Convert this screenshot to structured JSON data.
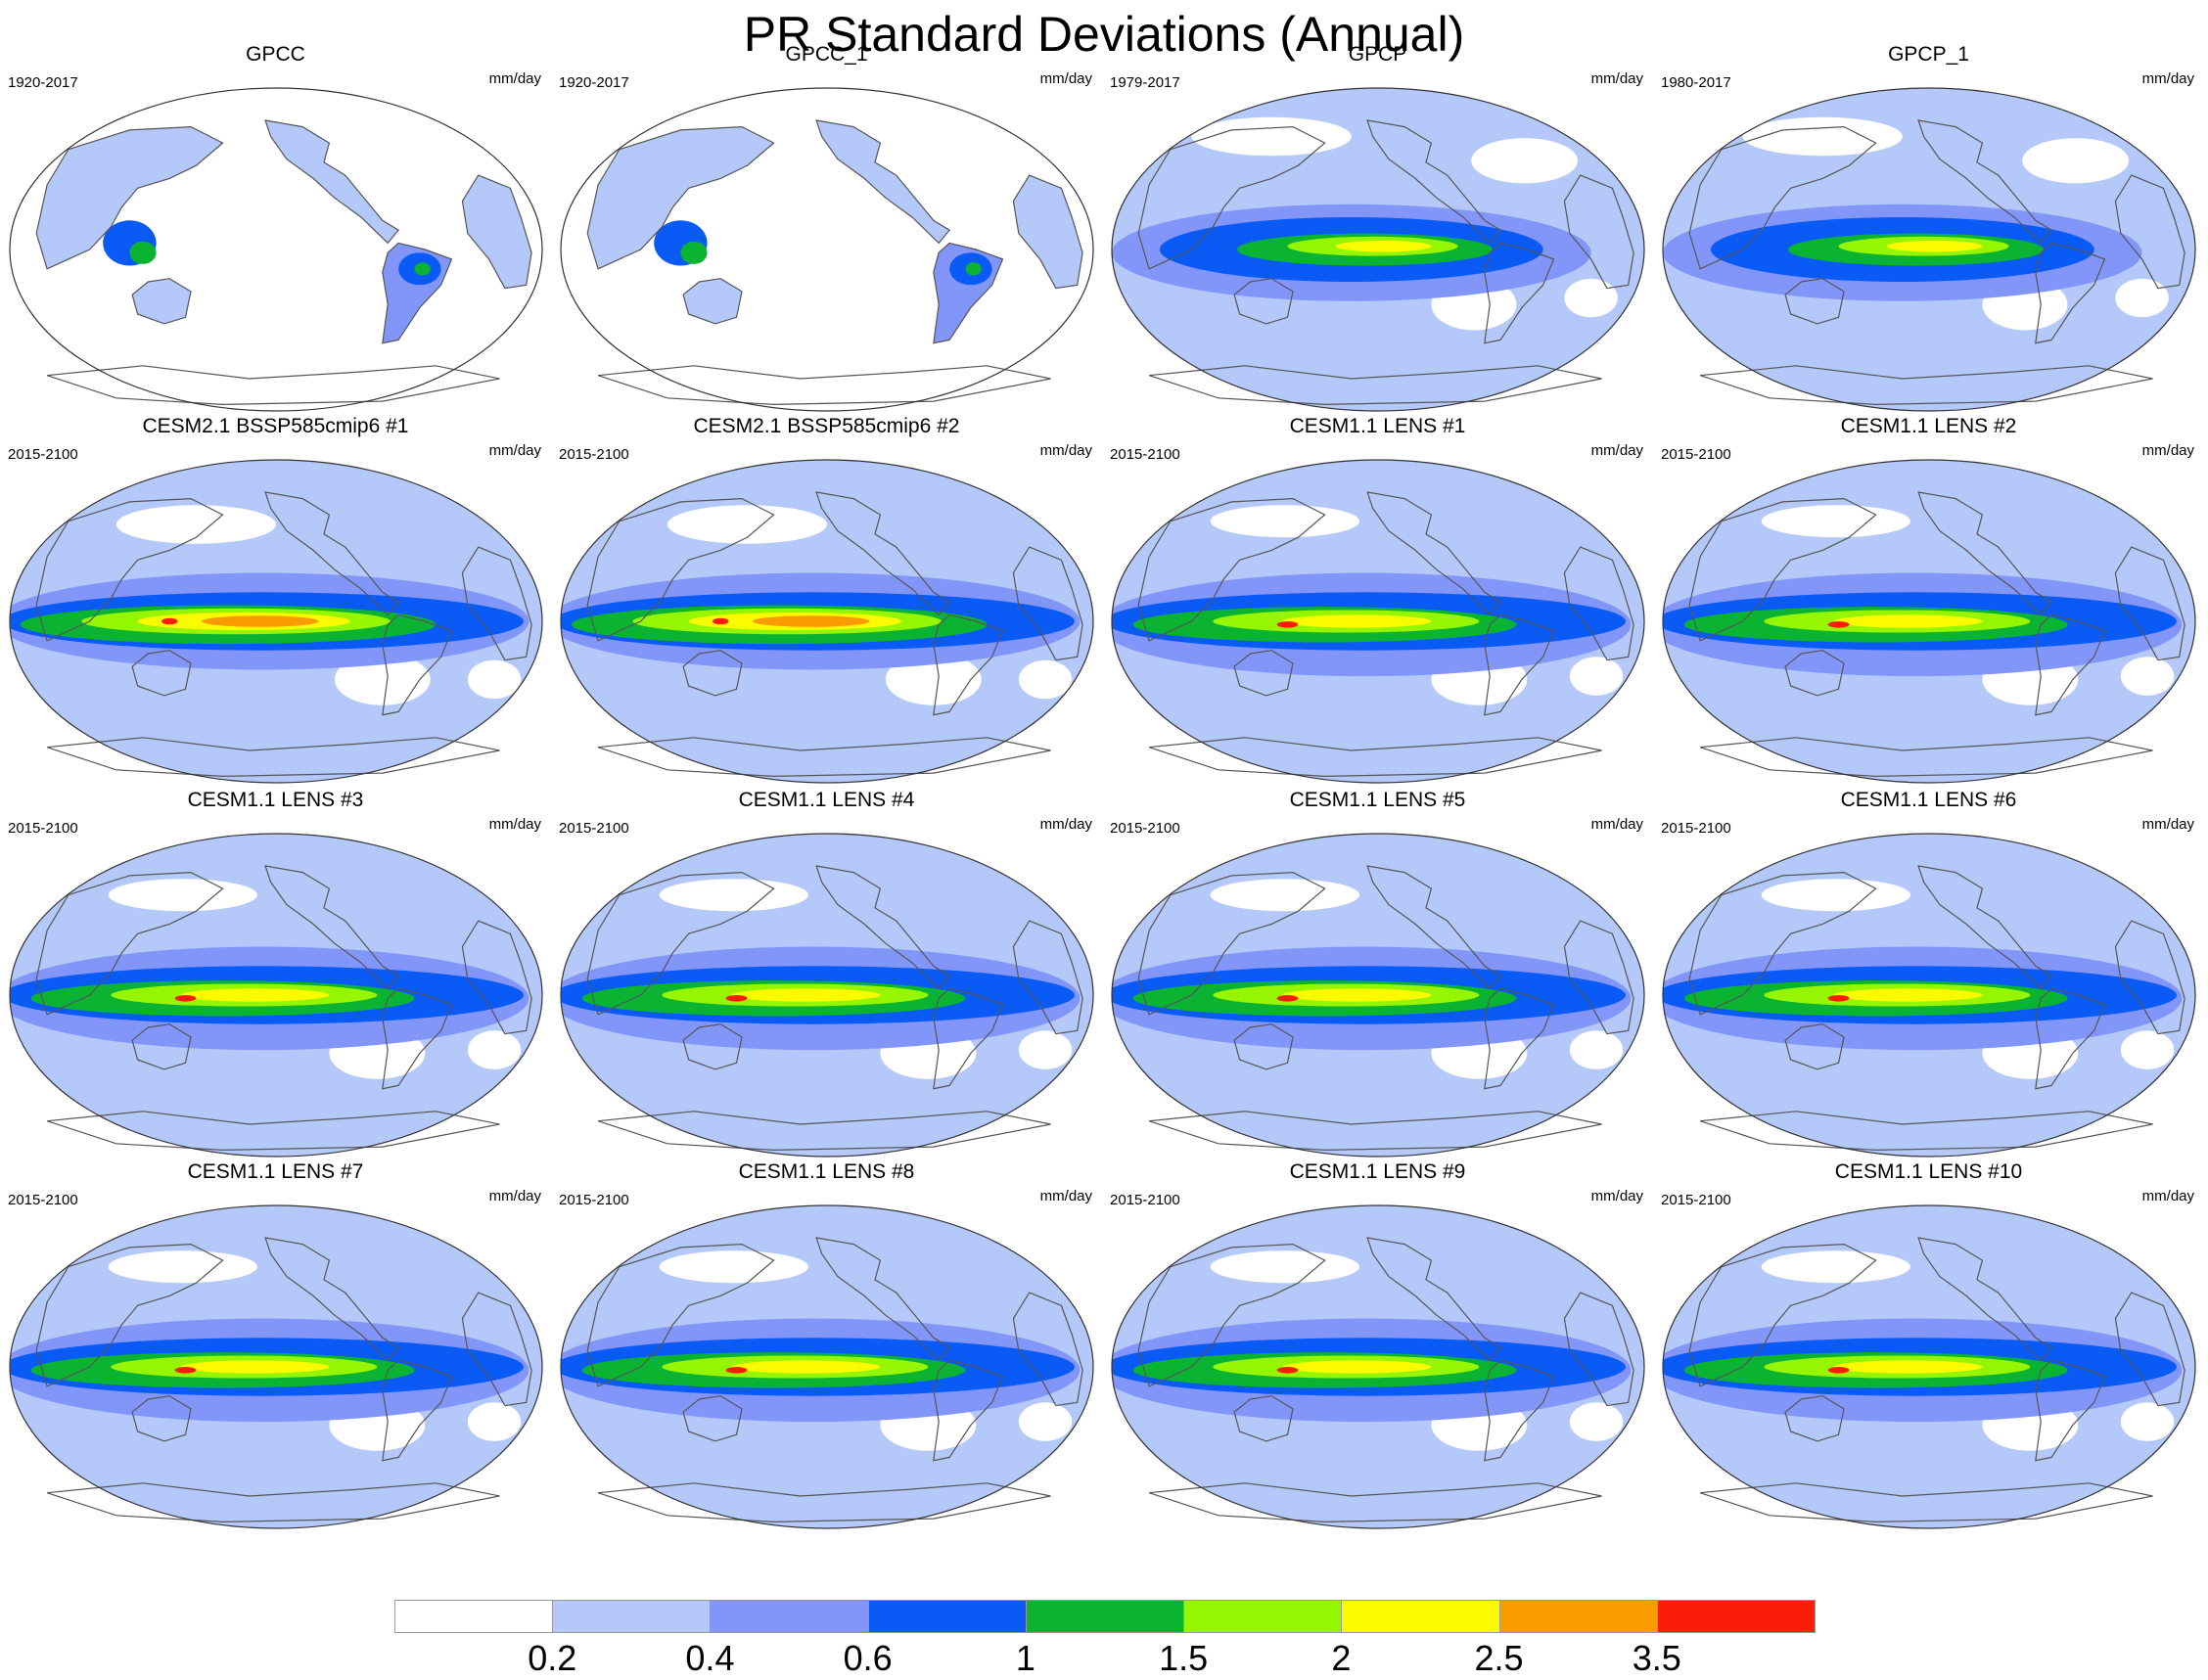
{
  "title": "PR Standard Deviations (Annual)",
  "units": "mm/day",
  "panels": [
    {
      "title": "GPCC",
      "period": "1920-2017",
      "kind": "gpcc"
    },
    {
      "title": "GPCC_1",
      "period": "1920-2017",
      "kind": "gpcc"
    },
    {
      "title": "GPCP",
      "period": "1979-2017",
      "kind": "gpcp"
    },
    {
      "title": "GPCP_1",
      "period": "1980-2017",
      "kind": "gpcp"
    },
    {
      "title": "CESM2.1 BSSP585cmip6 #1",
      "period": "2015-2100",
      "kind": "cesm2"
    },
    {
      "title": "CESM2.1 BSSP585cmip6 #2",
      "period": "2015-2100",
      "kind": "cesm2"
    },
    {
      "title": "CESM1.1 LENS #1",
      "period": "2015-2100",
      "kind": "lens"
    },
    {
      "title": "CESM1.1 LENS #2",
      "period": "2015-2100",
      "kind": "lens"
    },
    {
      "title": "CESM1.1 LENS #3",
      "period": "2015-2100",
      "kind": "lens"
    },
    {
      "title": "CESM1.1 LENS #4",
      "period": "2015-2100",
      "kind": "lens"
    },
    {
      "title": "CESM1.1 LENS #5",
      "period": "2015-2100",
      "kind": "lens"
    },
    {
      "title": "CESM1.1 LENS #6",
      "period": "2015-2100",
      "kind": "lens"
    },
    {
      "title": "CESM1.1 LENS #7",
      "period": "2015-2100",
      "kind": "lens"
    },
    {
      "title": "CESM1.1 LENS #8",
      "period": "2015-2100",
      "kind": "lens"
    },
    {
      "title": "CESM1.1 LENS #9",
      "period": "2015-2100",
      "kind": "lens"
    },
    {
      "title": "CESM1.1 LENS #10",
      "period": "2015-2100",
      "kind": "lens"
    }
  ],
  "colorbar": {
    "colors": [
      "#ffffff",
      "#b4c8fa",
      "#8296fa",
      "#0a5af5",
      "#0ab432",
      "#96f500",
      "#fafa00",
      "#fa9b00",
      "#fa1e0a"
    ],
    "labels": [
      "0.2",
      "0.4",
      "0.6",
      "1",
      "1.5",
      "2",
      "2.5",
      "3.5"
    ]
  }
}
